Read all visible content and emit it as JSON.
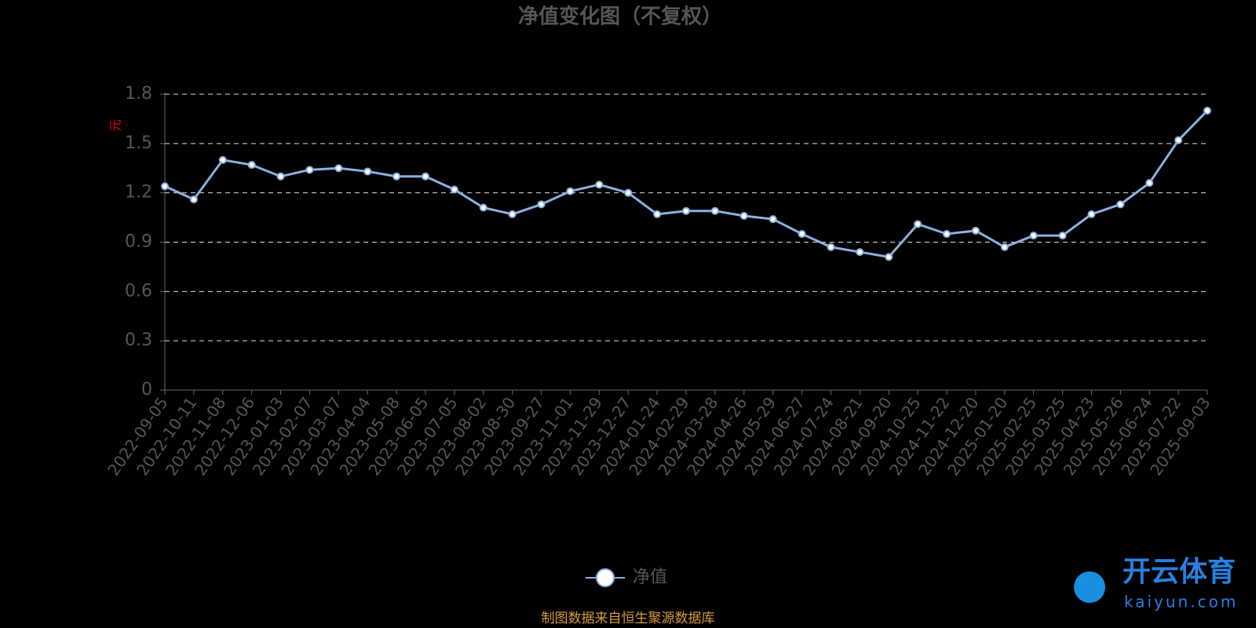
{
  "chart_data": {
    "type": "line",
    "title": "净值变化图（不复权）",
    "y_label": "元",
    "x": [
      "2022-09-05",
      "2022-10-11",
      "2022-11-08",
      "2022-12-06",
      "2023-01-03",
      "2023-02-07",
      "2023-03-07",
      "2023-04-04",
      "2023-05-08",
      "2023-06-05",
      "2023-07-05",
      "2023-08-02",
      "2023-08-30",
      "2023-09-27",
      "2023-11-01",
      "2023-11-29",
      "2023-12-27",
      "2024-01-24",
      "2024-02-29",
      "2024-03-28",
      "2024-04-26",
      "2024-05-29",
      "2024-06-27",
      "2024-07-24",
      "2024-08-21",
      "2024-09-20",
      "2024-10-25",
      "2024-11-22",
      "2024-12-20",
      "2025-01-20",
      "2025-02-25",
      "2025-03-25",
      "2025-04-23",
      "2025-05-26",
      "2025-06-24",
      "2025-07-22",
      "2025-09-03"
    ],
    "series": [
      {
        "name": "净值",
        "color": "#8cb0e0",
        "values": [
          1.24,
          1.16,
          1.4,
          1.37,
          1.3,
          1.34,
          1.35,
          1.33,
          1.3,
          1.3,
          1.22,
          1.11,
          1.07,
          1.13,
          1.21,
          1.25,
          1.2,
          1.07,
          1.09,
          1.09,
          1.06,
          1.04,
          0.95,
          0.87,
          0.84,
          0.81,
          1.01,
          0.95,
          0.97,
          0.87,
          0.94,
          0.94,
          1.07,
          1.13,
          1.26,
          1.52,
          1.7
        ]
      }
    ],
    "ylim": [
      0,
      1.8
    ],
    "yticks": [
      0,
      0.3,
      0.6,
      0.9,
      1.2,
      1.5,
      1.8
    ],
    "grid": true,
    "source": "制图数据来自恒生聚源数据库"
  },
  "watermark": {
    "name": "开云体育",
    "url": "kaiyun.com"
  }
}
